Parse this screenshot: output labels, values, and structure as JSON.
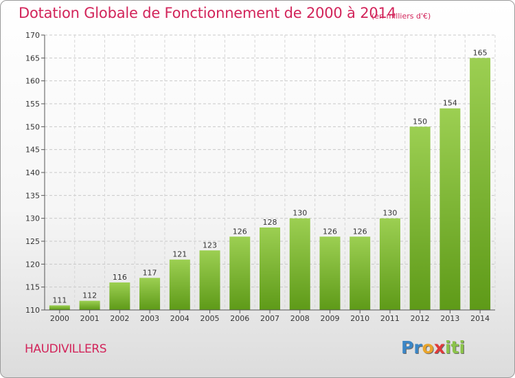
{
  "title": "Dotation Globale de Fonctionnement de 2000 à 2014",
  "subtitle": "(en milliers d'€)",
  "commune": "HAUDIVILLERS",
  "logo": {
    "parts": [
      "Pr",
      "o",
      "x",
      "iti"
    ]
  },
  "colors": {
    "bar_top": "#9ccf52",
    "bar_bottom": "#5e9a18",
    "title": "#d2245a",
    "grid": "#c8c8c8"
  },
  "chart_data": {
    "type": "bar",
    "title": "Dotation Globale de Fonctionnement de 2000 à 2014",
    "subtitle": "(en milliers d'€)",
    "xlabel": "",
    "ylabel": "",
    "categories": [
      "2000",
      "2001",
      "2002",
      "2003",
      "2004",
      "2005",
      "2006",
      "2007",
      "2008",
      "2009",
      "2010",
      "2011",
      "2012",
      "2013",
      "2014"
    ],
    "values": [
      111,
      112,
      116,
      117,
      121,
      123,
      126,
      128,
      130,
      126,
      126,
      130,
      150,
      154,
      165
    ],
    "ylim": [
      110,
      170
    ],
    "yticks": [
      110,
      115,
      120,
      125,
      130,
      135,
      140,
      145,
      150,
      155,
      160,
      165,
      170
    ],
    "grid": true
  }
}
